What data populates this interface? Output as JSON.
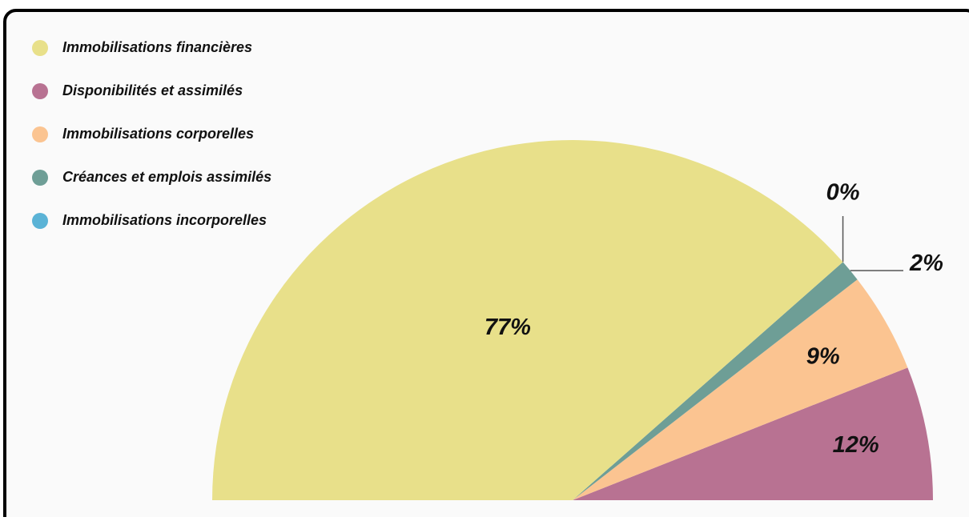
{
  "chart_data": {
    "type": "pie",
    "half": true,
    "categories": [
      "Immobilisations financières",
      "Disponibilités et assimilés",
      "Immobilisations corporelles",
      "Créances et emplois assimilés",
      "Immobilisations incorporelles"
    ],
    "values": [
      77,
      12,
      9,
      2,
      0
    ],
    "value_labels": [
      "77%",
      "12%",
      "9%",
      "2%",
      "0%"
    ],
    "colors": [
      "#e8e08a",
      "#b87292",
      "#fbc491",
      "#6e9e96",
      "#5bb3d6"
    ],
    "legend": "top-left"
  }
}
